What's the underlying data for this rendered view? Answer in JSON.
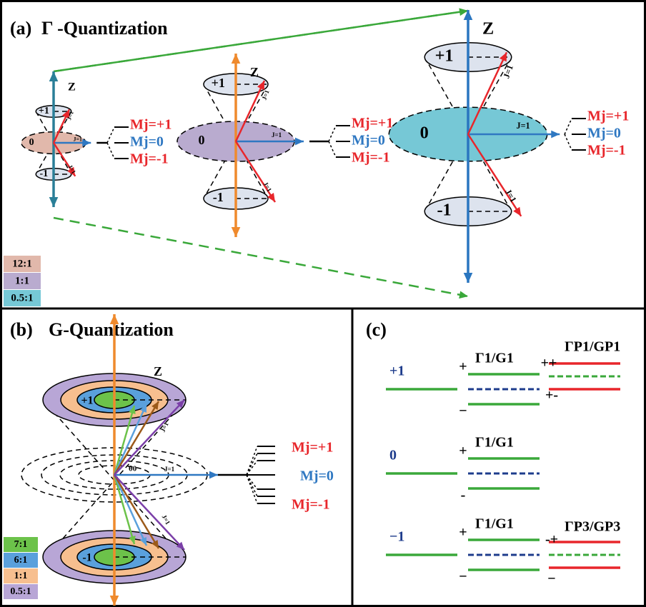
{
  "panel_a": {
    "label": "(a)",
    "title": "Γ -Quantization",
    "cones": [
      {
        "axis": "Z",
        "states": [
          "+1",
          "0",
          "-1"
        ],
        "j_labels": [
          "J=1",
          "J=1",
          "J=1"
        ],
        "mj": [
          "Mj=+1",
          "Mj=0",
          "Mj=-1"
        ]
      },
      {
        "axis": "Z",
        "states": [
          "+1",
          "0",
          "-1"
        ],
        "j_labels": [
          "J=1",
          "J=1",
          "J=1"
        ],
        "mj": [
          "Mj=+1",
          "Mj=0",
          "Mj=-1"
        ]
      },
      {
        "axis": "Z",
        "states": [
          "+1",
          "0",
          "-1"
        ],
        "j_labels": [
          "J=1",
          "J=1",
          "J=1"
        ],
        "mj": [
          "Mj=+1",
          "Mj=0",
          "Mj=-1"
        ]
      }
    ],
    "ratios": [
      "12:1",
      "1:1",
      "0.5:1"
    ]
  },
  "panel_b": {
    "label": "(b)",
    "title": "G-Quantization",
    "axis": "Z",
    "states": [
      "+1",
      "-1"
    ],
    "j_labels": [
      "J=1",
      "J=1",
      "J=1"
    ],
    "angle": "θ0",
    "mj": [
      "Mj=+1",
      "Mj=0",
      "Mj=-1"
    ],
    "ratios": [
      "7:1",
      "6:1",
      "1:1",
      "0.5:1"
    ]
  },
  "panel_c": {
    "label": "(c)",
    "levels": [
      {
        "state": "+1",
        "group": "Γ1/G1",
        "signs": [
          "+",
          "−"
        ],
        "extra": {
          "label": "ΓP1/GP1",
          "signs": [
            "++",
            "+-"
          ]
        }
      },
      {
        "state": "0",
        "group": "Γ1/G1",
        "signs": [
          "+",
          "-"
        ]
      },
      {
        "state": "−1",
        "group": "Γ1/G1",
        "signs": [
          "+",
          "−"
        ],
        "extra": {
          "label": "ΓP3/GP3",
          "signs": [
            "-+",
            "−"
          ]
        }
      }
    ]
  }
}
